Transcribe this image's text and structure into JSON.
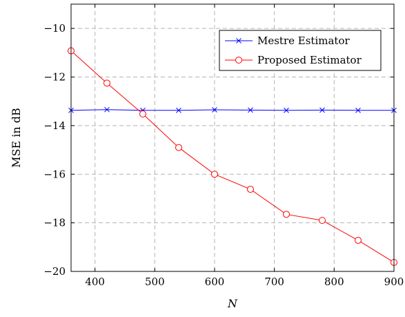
{
  "chart_data": {
    "type": "line",
    "xlabel": "N",
    "ylabel": "MSE in dB",
    "xlim": [
      360,
      900
    ],
    "ylim": [
      -20,
      -9
    ],
    "xticks": [
      400,
      500,
      600,
      700,
      800,
      900
    ],
    "yticks": [
      -20,
      -18,
      -16,
      -14,
      -12,
      -10
    ],
    "xtick_labels": [
      "400",
      "500",
      "600",
      "700",
      "800",
      "900"
    ],
    "ytick_labels": [
      "−20",
      "−18",
      "−16",
      "−14",
      "−12",
      "−10"
    ],
    "grid": true,
    "legend_position": "top-right",
    "x": [
      360,
      420,
      480,
      540,
      600,
      660,
      720,
      780,
      840,
      900
    ],
    "series": [
      {
        "name": "Mestre Estimator",
        "color": "#0000ff",
        "marker": "x",
        "values": [
          -13.37,
          -13.34,
          -13.37,
          -13.37,
          -13.35,
          -13.36,
          -13.37,
          -13.36,
          -13.37,
          -13.37
        ]
      },
      {
        "name": "Proposed Estimator",
        "color": "#ff0000",
        "marker": "circle",
        "values": [
          -10.92,
          -12.25,
          -13.52,
          -14.9,
          -16.0,
          -16.62,
          -17.65,
          -17.9,
          -18.72,
          -19.63
        ]
      }
    ]
  }
}
